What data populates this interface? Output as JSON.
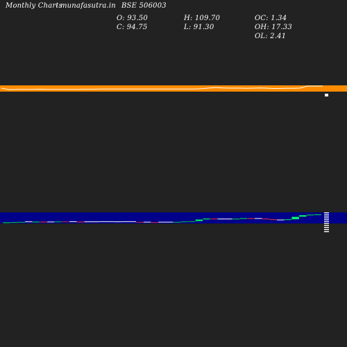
{
  "header": {
    "title": "Monthly Charts",
    "source": "- munafasutra.in",
    "symbol": "BSE 506003"
  },
  "stats": {
    "open": "O: 93.50",
    "close": "C: 94.75",
    "high": "H: 109.70",
    "low": "L: 91.30",
    "oc": "OC: 1.34",
    "oh": "OH: 17.33",
    "ol": "OL: 2.41"
  },
  "colors": {
    "background": "#222222",
    "band": "#ff8c00",
    "band_line": "#ffffff",
    "panel": "#00008b",
    "up": "#00ff7f",
    "down": "#ff3b6b",
    "neutral": "#ffffff"
  },
  "chart_data": {
    "type": "candlestick",
    "upper_panel": {
      "series": [
        {
          "values": [
            20,
            6,
            8,
            8,
            8,
            10,
            9,
            9,
            9,
            9,
            8,
            10,
            10,
            12,
            11,
            12,
            12,
            11,
            12,
            12,
            12,
            11,
            11,
            11,
            11,
            12,
            14,
            20,
            26,
            22,
            20,
            20,
            19,
            20,
            22,
            18,
            16,
            18,
            18,
            20,
            40,
            40,
            40
          ]
        }
      ]
    },
    "lower_panel": {
      "candles": [
        {
          "open": 2.0,
          "close": 2.2,
          "dir": "up"
        },
        {
          "open": 2.2,
          "close": 2.3,
          "dir": "up"
        },
        {
          "open": 2.3,
          "close": 2.5,
          "dir": "up"
        },
        {
          "open": 2.5,
          "close": 2.4,
          "dir": "neutral"
        },
        {
          "open": 2.4,
          "close": 2.6,
          "dir": "up"
        },
        {
          "open": 2.6,
          "close": 2.3,
          "dir": "down"
        },
        {
          "open": 2.3,
          "close": 2.4,
          "dir": "neutral"
        },
        {
          "open": 2.4,
          "close": 2.7,
          "dir": "up"
        },
        {
          "open": 2.7,
          "close": 2.5,
          "dir": "down"
        },
        {
          "open": 2.5,
          "close": 2.6,
          "dir": "neutral"
        },
        {
          "open": 2.6,
          "close": 2.4,
          "dir": "down"
        },
        {
          "open": 2.4,
          "close": 2.5,
          "dir": "neutral"
        },
        {
          "open": 2.5,
          "close": 2.5,
          "dir": "neutral"
        },
        {
          "open": 2.5,
          "close": 2.6,
          "dir": "neutral"
        },
        {
          "open": 2.6,
          "close": 2.5,
          "dir": "neutral"
        },
        {
          "open": 2.5,
          "close": 2.5,
          "dir": "neutral"
        },
        {
          "open": 2.5,
          "close": 2.6,
          "dir": "neutral"
        },
        {
          "open": 2.6,
          "close": 2.5,
          "dir": "neutral"
        },
        {
          "open": 2.5,
          "close": 2.2,
          "dir": "down"
        },
        {
          "open": 2.2,
          "close": 2.3,
          "dir": "neutral"
        },
        {
          "open": 2.3,
          "close": 2.2,
          "dir": "down"
        },
        {
          "open": 2.2,
          "close": 2.3,
          "dir": "neutral"
        },
        {
          "open": 2.3,
          "close": 2.3,
          "dir": "neutral"
        },
        {
          "open": 2.3,
          "close": 2.5,
          "dir": "up"
        },
        {
          "open": 2.5,
          "close": 2.7,
          "dir": "up"
        },
        {
          "open": 2.7,
          "close": 2.9,
          "dir": "up"
        },
        {
          "open": 2.9,
          "close": 3.9,
          "dir": "up"
        },
        {
          "open": 3.9,
          "close": 4.5,
          "dir": "up"
        },
        {
          "open": 4.5,
          "close": 4.0,
          "dir": "down"
        },
        {
          "open": 4.0,
          "close": 4.2,
          "dir": "neutral"
        },
        {
          "open": 4.2,
          "close": 4.0,
          "dir": "neutral"
        },
        {
          "open": 4.0,
          "close": 4.4,
          "dir": "up"
        },
        {
          "open": 4.4,
          "close": 4.7,
          "dir": "up"
        },
        {
          "open": 4.7,
          "close": 4.4,
          "dir": "down"
        },
        {
          "open": 4.4,
          "close": 4.5,
          "dir": "neutral"
        },
        {
          "open": 4.5,
          "close": 4.0,
          "dir": "down"
        },
        {
          "open": 4.0,
          "close": 3.5,
          "dir": "down"
        },
        {
          "open": 3.5,
          "close": 3.6,
          "dir": "neutral"
        },
        {
          "open": 3.6,
          "close": 4.0,
          "dir": "up"
        },
        {
          "open": 4.0,
          "close": 5.5,
          "dir": "up"
        },
        {
          "open": 5.5,
          "close": 6.5,
          "dir": "up"
        },
        {
          "open": 6.5,
          "close": 6.8,
          "dir": "up"
        },
        {
          "open": 6.8,
          "close": 7.0,
          "dir": "up"
        }
      ]
    }
  }
}
